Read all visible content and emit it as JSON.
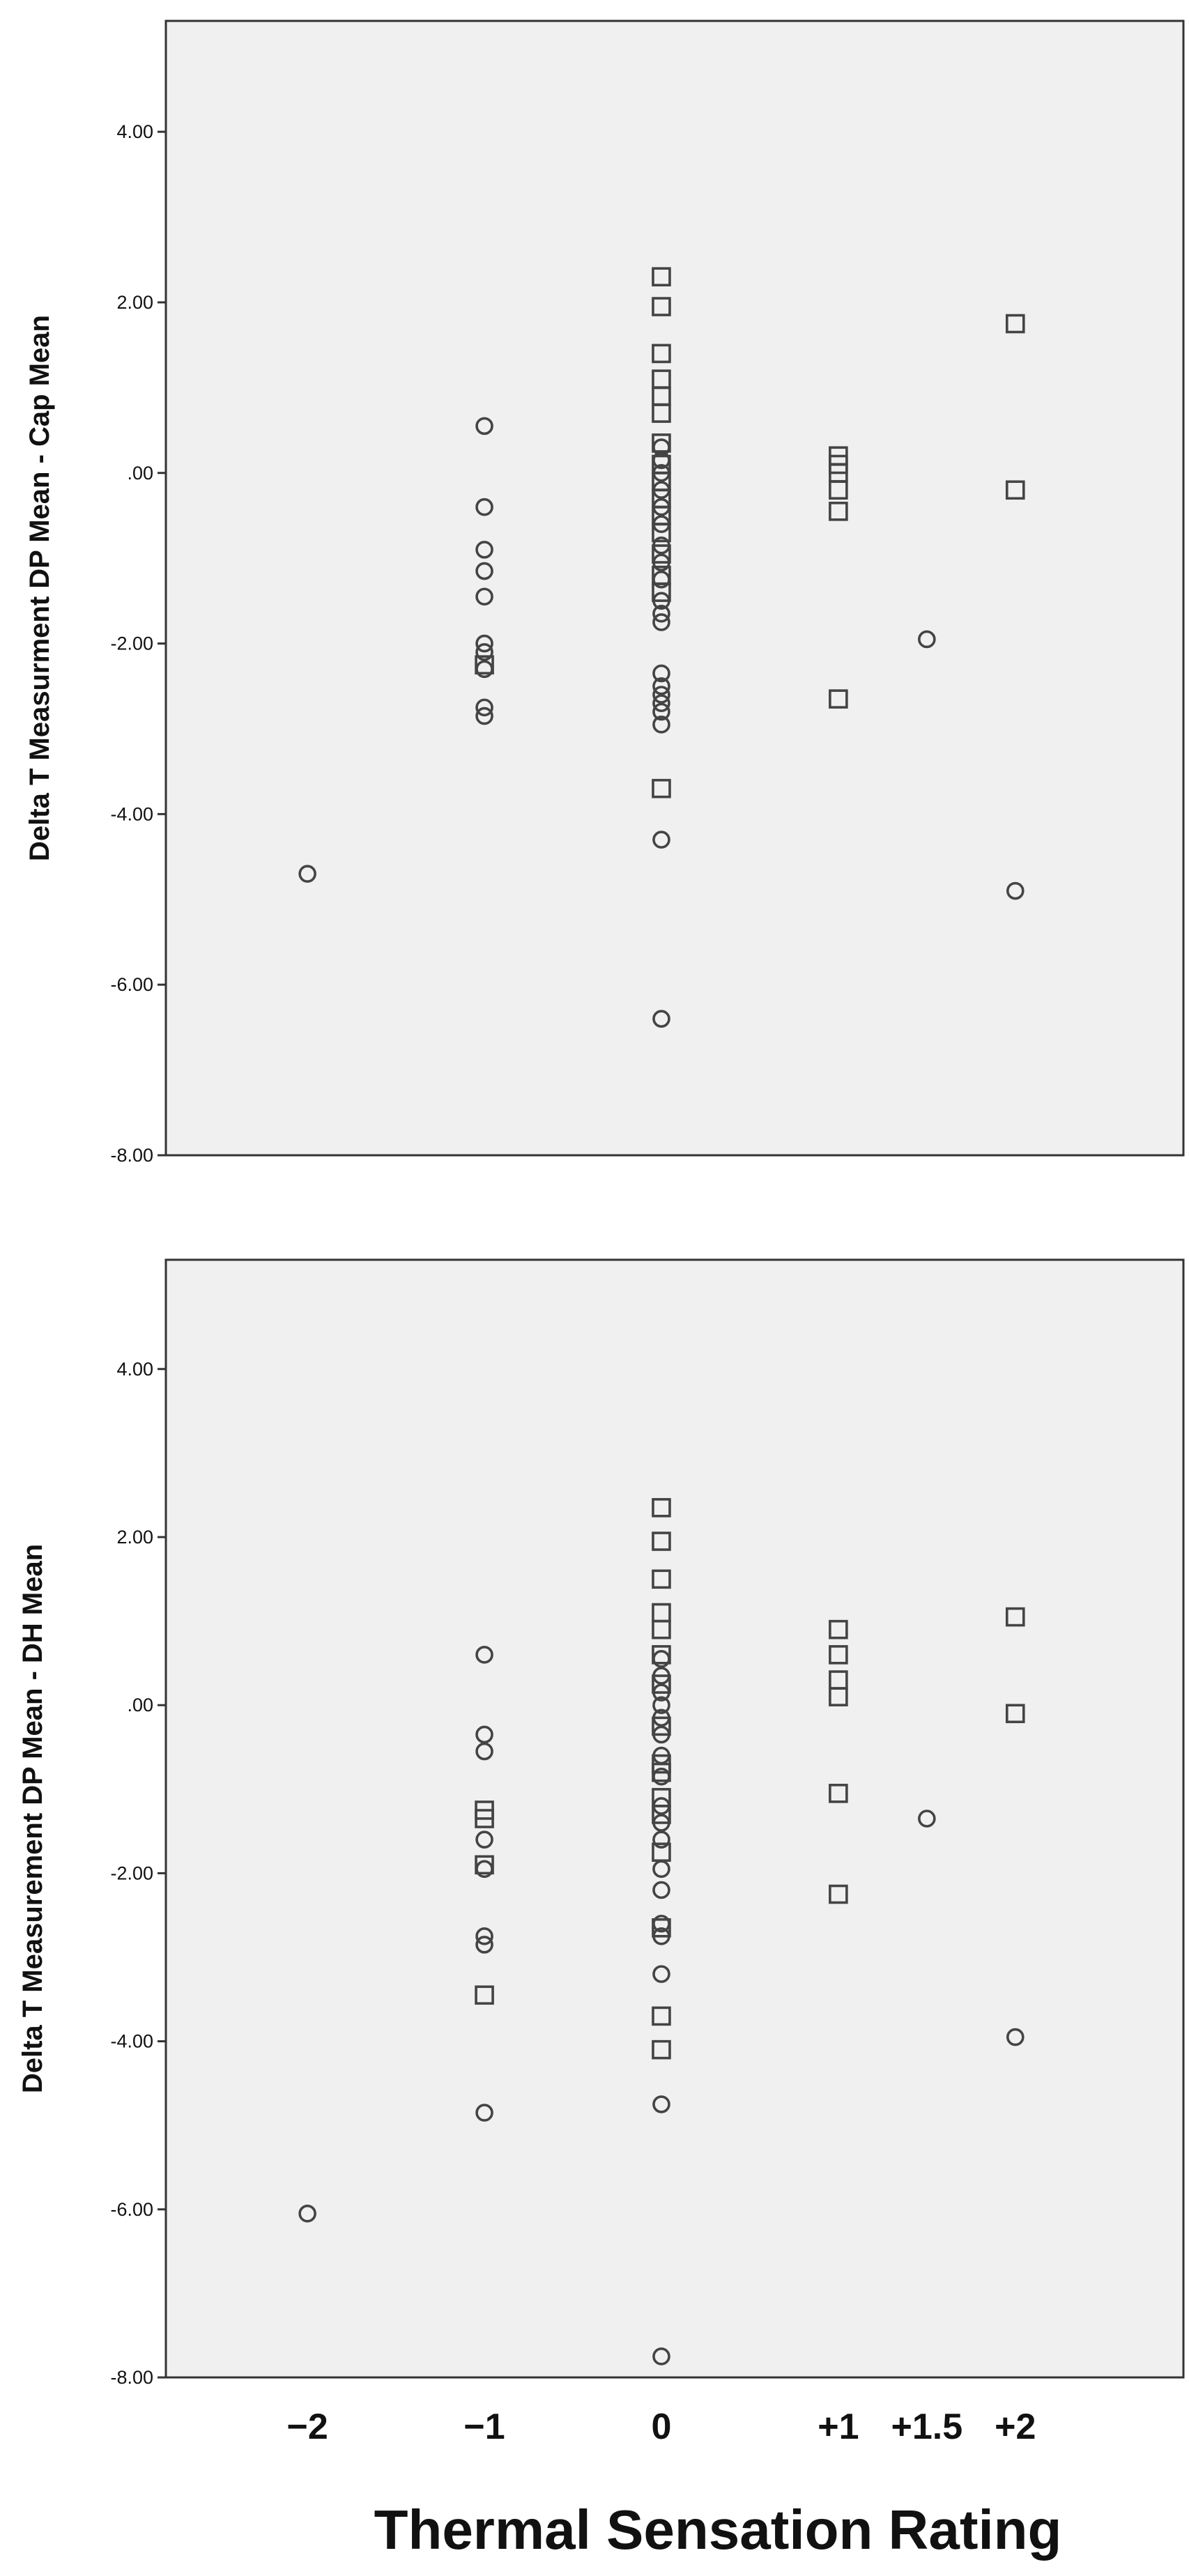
{
  "colors": {
    "plot_background": "#f0f0f0",
    "frame": "#333333",
    "marker_stroke": "#444444",
    "text": "#111111"
  },
  "x_tick_labels": [
    "−2",
    "−1",
    "0",
    "+1",
    "+1.5",
    "+2"
  ],
  "x_axis_title": "Thermal Sensation Rating",
  "chart_data": [
    {
      "type": "scatter",
      "title": "",
      "xlabel": "Thermal Sensation Rating",
      "ylabel": "Delta T Measurment DP Mean - Cap Mean",
      "x_categories": [
        "−2",
        "−1",
        "0",
        "+1",
        "+1.5",
        "+2"
      ],
      "xlim": [
        -2.8,
        2.95
      ],
      "ylim": [
        -8.0,
        5.3
      ],
      "y_ticks": [
        4.0,
        2.0,
        0.0,
        -2.0,
        -4.0,
        -6.0,
        -8.0
      ],
      "y_tick_labels": [
        "4.00",
        "2.00",
        ".00",
        "-2.00",
        "-4.00",
        "-6.00",
        "-8.00"
      ],
      "grid": false,
      "legend": "none",
      "series": [
        {
          "marker": "circle",
          "points": [
            {
              "x": -2,
              "y": -4.7
            },
            {
              "x": -1,
              "y": 0.55
            },
            {
              "x": -1,
              "y": -0.4
            },
            {
              "x": -1,
              "y": -0.9
            },
            {
              "x": -1,
              "y": -1.15
            },
            {
              "x": -1,
              "y": -1.45
            },
            {
              "x": -1,
              "y": -2.0
            },
            {
              "x": -1,
              "y": -2.1
            },
            {
              "x": -1,
              "y": -2.3
            },
            {
              "x": -1,
              "y": -2.75
            },
            {
              "x": -1,
              "y": -2.85
            },
            {
              "x": 0,
              "y": 0.3
            },
            {
              "x": 0,
              "y": 0.15
            },
            {
              "x": 0,
              "y": 0.0
            },
            {
              "x": 0,
              "y": -0.2
            },
            {
              "x": 0,
              "y": -0.4
            },
            {
              "x": 0,
              "y": -0.6
            },
            {
              "x": 0,
              "y": -0.85
            },
            {
              "x": 0,
              "y": -1.05
            },
            {
              "x": 0,
              "y": -1.25
            },
            {
              "x": 0,
              "y": -1.5
            },
            {
              "x": 0,
              "y": -1.65
            },
            {
              "x": 0,
              "y": -1.75
            },
            {
              "x": 0,
              "y": -2.35
            },
            {
              "x": 0,
              "y": -2.5
            },
            {
              "x": 0,
              "y": -2.6
            },
            {
              "x": 0,
              "y": -2.7
            },
            {
              "x": 0,
              "y": -2.8
            },
            {
              "x": 0,
              "y": -2.95
            },
            {
              "x": 0,
              "y": -4.3
            },
            {
              "x": 0,
              "y": -6.4
            },
            {
              "x": 1.5,
              "y": -1.95
            },
            {
              "x": 2,
              "y": -4.9
            }
          ]
        },
        {
          "marker": "square",
          "points": [
            {
              "x": -1,
              "y": -2.25
            },
            {
              "x": 0,
              "y": 2.3
            },
            {
              "x": 0,
              "y": 1.95
            },
            {
              "x": 0,
              "y": 1.4
            },
            {
              "x": 0,
              "y": 1.1
            },
            {
              "x": 0,
              "y": 0.9
            },
            {
              "x": 0,
              "y": 0.7
            },
            {
              "x": 0,
              "y": 0.35
            },
            {
              "x": 0,
              "y": 0.1
            },
            {
              "x": 0,
              "y": -0.1
            },
            {
              "x": 0,
              "y": -0.3
            },
            {
              "x": 0,
              "y": -0.5
            },
            {
              "x": 0,
              "y": -0.7
            },
            {
              "x": 0,
              "y": -0.95
            },
            {
              "x": 0,
              "y": -1.2
            },
            {
              "x": 0,
              "y": -1.4
            },
            {
              "x": 0,
              "y": -3.7
            },
            {
              "x": 1,
              "y": 0.2
            },
            {
              "x": 1,
              "y": 0.1
            },
            {
              "x": 1,
              "y": 0.0
            },
            {
              "x": 1,
              "y": -0.2
            },
            {
              "x": 1,
              "y": -0.45
            },
            {
              "x": 1,
              "y": -2.65
            },
            {
              "x": 2,
              "y": 1.75
            },
            {
              "x": 2,
              "y": -0.2
            }
          ]
        }
      ]
    },
    {
      "type": "scatter",
      "title": "",
      "xlabel": "Thermal Sensation Rating",
      "ylabel": "Delta T Measurement DP Mean - DH Mean",
      "x_categories": [
        "−2",
        "−1",
        "0",
        "+1",
        "+1.5",
        "+2"
      ],
      "xlim": [
        -2.8,
        2.95
      ],
      "ylim": [
        -8.0,
        5.3
      ],
      "y_ticks": [
        4.0,
        2.0,
        0.0,
        -2.0,
        -4.0,
        -6.0,
        -8.0
      ],
      "y_tick_labels": [
        "4.00",
        "2.00",
        ".00",
        "-2.00",
        "-4.00",
        "-6.00",
        "-8.00"
      ],
      "grid": false,
      "legend": "none",
      "series": [
        {
          "marker": "circle",
          "points": [
            {
              "x": -2,
              "y": -6.05
            },
            {
              "x": -1,
              "y": 0.6
            },
            {
              "x": -1,
              "y": -0.35
            },
            {
              "x": -1,
              "y": -0.55
            },
            {
              "x": -1,
              "y": -1.6
            },
            {
              "x": -1,
              "y": -1.95
            },
            {
              "x": -1,
              "y": -2.75
            },
            {
              "x": -1,
              "y": -2.85
            },
            {
              "x": -1,
              "y": -4.85
            },
            {
              "x": 0,
              "y": 0.55
            },
            {
              "x": 0,
              "y": 0.35
            },
            {
              "x": 0,
              "y": 0.15
            },
            {
              "x": 0,
              "y": 0.0
            },
            {
              "x": 0,
              "y": -0.15
            },
            {
              "x": 0,
              "y": -0.35
            },
            {
              "x": 0,
              "y": -0.6
            },
            {
              "x": 0,
              "y": -0.85
            },
            {
              "x": 0,
              "y": -1.2
            },
            {
              "x": 0,
              "y": -1.4
            },
            {
              "x": 0,
              "y": -1.6
            },
            {
              "x": 0,
              "y": -1.95
            },
            {
              "x": 0,
              "y": -2.2
            },
            {
              "x": 0,
              "y": -2.6
            },
            {
              "x": 0,
              "y": -2.75
            },
            {
              "x": 0,
              "y": -3.2
            },
            {
              "x": 0,
              "y": -4.75
            },
            {
              "x": 0,
              "y": -7.75
            },
            {
              "x": 1.5,
              "y": -1.35
            },
            {
              "x": 2,
              "y": -3.95
            }
          ]
        },
        {
          "marker": "square",
          "points": [
            {
              "x": -1,
              "y": -1.25
            },
            {
              "x": -1,
              "y": -1.35
            },
            {
              "x": -1,
              "y": -1.9
            },
            {
              "x": -1,
              "y": -3.45
            },
            {
              "x": 0,
              "y": 2.35
            },
            {
              "x": 0,
              "y": 1.95
            },
            {
              "x": 0,
              "y": 1.5
            },
            {
              "x": 0,
              "y": 1.1
            },
            {
              "x": 0,
              "y": 0.9
            },
            {
              "x": 0,
              "y": 0.6
            },
            {
              "x": 0,
              "y": 0.25
            },
            {
              "x": 0,
              "y": -0.25
            },
            {
              "x": 0,
              "y": -0.7
            },
            {
              "x": 0,
              "y": -0.8
            },
            {
              "x": 0,
              "y": -1.1
            },
            {
              "x": 0,
              "y": -1.3
            },
            {
              "x": 0,
              "y": -1.75
            },
            {
              "x": 0,
              "y": -2.65
            },
            {
              "x": 0,
              "y": -3.7
            },
            {
              "x": 0,
              "y": -4.1
            },
            {
              "x": 1,
              "y": 0.9
            },
            {
              "x": 1,
              "y": 0.6
            },
            {
              "x": 1,
              "y": 0.3
            },
            {
              "x": 1,
              "y": 0.1
            },
            {
              "x": 1,
              "y": -1.05
            },
            {
              "x": 1,
              "y": -2.25
            },
            {
              "x": 2,
              "y": 1.05
            },
            {
              "x": 2,
              "y": -0.1
            }
          ]
        }
      ]
    }
  ]
}
